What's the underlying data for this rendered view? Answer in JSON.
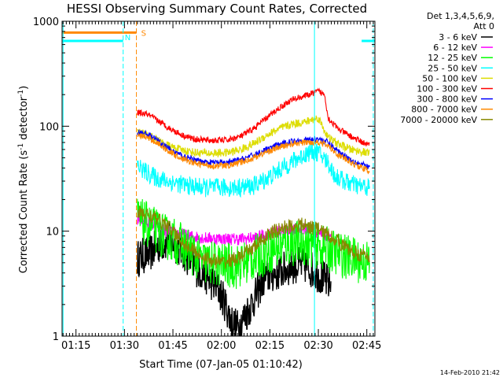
{
  "chart_data": {
    "type": "line",
    "title": "HESSI Observing Summary Count Rates, Corrected",
    "xlabel": "Start Time (07-Jan-05 01:10:42)",
    "ylabel_main": "Corrected Count Rate (s",
    "ylabel_sup1": "-1",
    "ylabel_mid": " detector",
    "ylabel_sup2": "-1",
    "ylabel_end": ")",
    "y_scale": "log",
    "ylim": [
      1,
      1000
    ],
    "xlim": [
      70.7,
      167.5
    ],
    "x_ticks": [
      {
        "value": 75,
        "label": "01:15"
      },
      {
        "value": 90,
        "label": "01:30"
      },
      {
        "value": 105,
        "label": "01:45"
      },
      {
        "value": 120,
        "label": "02:00"
      },
      {
        "value": 135,
        "label": "02:15"
      },
      {
        "value": 150,
        "label": "02:30"
      },
      {
        "value": 165,
        "label": "02:45"
      }
    ],
    "y_ticks": [
      {
        "value": 1,
        "label": "1"
      },
      {
        "value": 10,
        "label": "10"
      },
      {
        "value": 100,
        "label": "100"
      },
      {
        "value": 1000,
        "label": "1000"
      }
    ],
    "legend": {
      "placement": "top-right",
      "header": [
        "Det 1,3,4,5,6,9,",
        "Att 0"
      ],
      "entries": [
        {
          "label": "3 - 6 keV",
          "color": "#000000"
        },
        {
          "label": "6 - 12 keV",
          "color": "#ff00ff"
        },
        {
          "label": "12 - 25 keV",
          "color": "#00ff00"
        },
        {
          "label": "25 - 50 keV",
          "color": "#00ffff"
        },
        {
          "label": "50 - 100 keV",
          "color": "#dddd00"
        },
        {
          "label": "100 - 300 keV",
          "color": "#ff0000"
        },
        {
          "label": "300 - 800 keV",
          "color": "#0000ff"
        },
        {
          "label": "800 - 7000 keV",
          "color": "#ff8800"
        },
        {
          "label": "7000 - 20000 keV",
          "color": "#888800"
        }
      ]
    },
    "markers": [
      {
        "type": "saa-line",
        "x": [
          70.7,
          89.6
        ],
        "y": 650,
        "color": "#00ffff"
      },
      {
        "type": "saa-line",
        "x": [
          163.4,
          167.4
        ],
        "y": 650,
        "color": "#00ffff"
      },
      {
        "type": "night-line",
        "x": [
          70.7,
          93.7
        ],
        "y": 780,
        "color": "#ff8800",
        "label": "S"
      },
      {
        "type": "vline",
        "x": 71.0,
        "color": "#00ffff",
        "style": "solid"
      },
      {
        "type": "vline",
        "x": 89.6,
        "color": "#00ffff",
        "style": "dashed",
        "label": "N"
      },
      {
        "type": "vline",
        "x": 93.7,
        "color": "#ff8800",
        "style": "dashed"
      },
      {
        "type": "vline",
        "x": 148.8,
        "color": "#00ffff",
        "style": "solid"
      },
      {
        "type": "vline",
        "x": 167.0,
        "color": "#00ffff",
        "style": "dashed"
      }
    ],
    "series": [
      {
        "name": "3 - 6 keV",
        "color": "#000000",
        "noise": 0.18,
        "x": [
          94,
          98,
          101,
          104,
          108,
          112,
          115,
          119,
          121,
          123,
          125,
          127,
          130,
          133,
          136,
          139,
          142,
          146,
          150,
          154
        ],
        "y": [
          5.5,
          6.2,
          7.5,
          8.2,
          6.5,
          4.5,
          3.8,
          2.8,
          2.1,
          1.4,
          1.2,
          1.5,
          2.2,
          3.5,
          3.9,
          4.2,
          4.7,
          4.7,
          3.9,
          3.0
        ]
      },
      {
        "name": "6 - 12 keV",
        "color": "#ff00ff",
        "noise": 0.06,
        "x": [
          94,
          97,
          100,
          103,
          106,
          110,
          115,
          120,
          125,
          130,
          135,
          140,
          145,
          150,
          154
        ],
        "y": [
          13,
          12.5,
          11,
          10,
          9.5,
          9.0,
          8.6,
          8.5,
          8.4,
          8.6,
          9.5,
          10.3,
          10.6,
          9.8,
          9.0
        ]
      },
      {
        "name": "12 - 25 keV",
        "color": "#00ff00",
        "noise": 0.22,
        "x": [
          94,
          98,
          102,
          106,
          110,
          115,
          120,
          125,
          130,
          135,
          140,
          145,
          150,
          155,
          160,
          166
        ],
        "y": [
          13,
          11,
          9,
          8,
          6.5,
          5.0,
          4.8,
          4.6,
          5.5,
          6.5,
          7.5,
          7.8,
          7.2,
          6.3,
          5.5,
          5.0
        ]
      },
      {
        "name": "25 - 50 keV",
        "color": "#00ffff",
        "noise": 0.09,
        "x": [
          94,
          97,
          100,
          105,
          110,
          115,
          120,
          125,
          130,
          135,
          140,
          144,
          148,
          150,
          153,
          155,
          158,
          162,
          166
        ],
        "y": [
          42,
          36,
          32,
          29,
          27,
          26,
          26,
          26,
          27,
          33,
          42,
          50,
          58,
          56,
          45,
          34,
          30,
          27,
          26
        ]
      },
      {
        "name": "50 - 100 keV",
        "color": "#dddd00",
        "noise": 0.04,
        "x": [
          94,
          96,
          99,
          103,
          107,
          112,
          117,
          122,
          126,
          130,
          134,
          138,
          142,
          146,
          150,
          153,
          156,
          160,
          166
        ],
        "y": [
          88,
          85,
          78,
          66,
          60,
          56,
          55,
          56,
          60,
          68,
          82,
          95,
          105,
          110,
          120,
          78,
          68,
          60,
          55
        ]
      },
      {
        "name": "100 - 300 keV",
        "color": "#ff0000",
        "noise": 0.03,
        "x": [
          94,
          97,
          100,
          104,
          108,
          112,
          117,
          122,
          126,
          130,
          134,
          138,
          142,
          146,
          150,
          152,
          153,
          156,
          160,
          166
        ],
        "y": [
          135,
          130,
          115,
          95,
          82,
          75,
          73,
          74,
          80,
          95,
          120,
          150,
          180,
          195,
          215,
          200,
          120,
          95,
          80,
          65
        ]
      },
      {
        "name": "300 - 800 keV",
        "color": "#0000ff",
        "noise": 0.03,
        "x": [
          94,
          97,
          100,
          104,
          108,
          112,
          117,
          122,
          126,
          130,
          134,
          138,
          142,
          146,
          150,
          153,
          156,
          160,
          166
        ],
        "y": [
          88,
          84,
          74,
          60,
          52,
          47,
          45,
          45,
          48,
          53,
          60,
          67,
          72,
          74,
          76,
          70,
          58,
          48,
          40
        ]
      },
      {
        "name": "800 - 7000 keV",
        "color": "#ff8800",
        "noise": 0.03,
        "x": [
          94,
          97,
          100,
          104,
          108,
          112,
          117,
          122,
          126,
          130,
          134,
          138,
          142,
          146,
          150,
          153,
          156,
          160,
          166
        ],
        "y": [
          82,
          78,
          70,
          57,
          49,
          44,
          42,
          42,
          45,
          50,
          57,
          63,
          68,
          70,
          71,
          65,
          54,
          45,
          37
        ]
      },
      {
        "name": "7000 - 20000 keV",
        "color": "#888800",
        "noise": 0.07,
        "x": [
          94,
          97,
          100,
          103,
          106,
          110,
          115,
          120,
          125,
          130,
          135,
          140,
          145,
          150,
          155,
          160,
          166
        ],
        "y": [
          15,
          14.5,
          13,
          11.5,
          9,
          7,
          5.5,
          5.0,
          5.5,
          7,
          9.5,
          11,
          11.5,
          10.5,
          8.5,
          6.5,
          5.5
        ]
      }
    ]
  },
  "footer": {
    "timestamp": "14-Feb-2010 21:42"
  }
}
